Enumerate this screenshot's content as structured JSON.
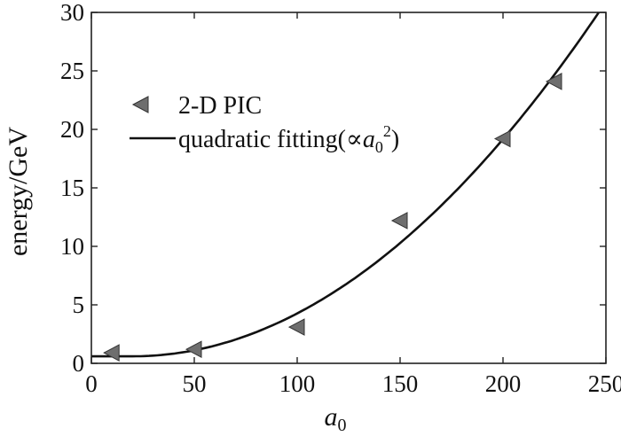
{
  "chart_data": {
    "type": "scatter",
    "xlabel": "a",
    "xlabel_subscript": "0",
    "ylabel": "energy/GeV",
    "xlim": [
      0,
      250
    ],
    "ylim": [
      0,
      30
    ],
    "xticks": [
      0,
      50,
      100,
      150,
      200,
      250
    ],
    "yticks": [
      0,
      5,
      10,
      15,
      20,
      25,
      30
    ],
    "grid": false,
    "legend_position": "upper-left",
    "series": [
      {
        "name": "2-D PIC",
        "marker": "left-triangle",
        "color": "#6e6e6e",
        "points": [
          {
            "x": 10,
            "y": 0.9
          },
          {
            "x": 50,
            "y": 1.2
          },
          {
            "x": 100,
            "y": 3.1
          },
          {
            "x": 150,
            "y": 12.2
          },
          {
            "x": 200,
            "y": 19.2
          },
          {
            "x": 225,
            "y": 24.1
          }
        ]
      },
      {
        "name": "quadratic fitting(∝a0²)",
        "legend_parts": {
          "prefix": "quadratic fitting(",
          "propto": "∝",
          "var": "a",
          "sub": "0",
          "sup": "2",
          "suffix": ")"
        },
        "type": "line",
        "color": "#111111",
        "fit": {
          "form": "c + k*(x - x0)^2",
          "c": 0.6,
          "k": 0.000573,
          "x0": 20
        }
      }
    ]
  }
}
